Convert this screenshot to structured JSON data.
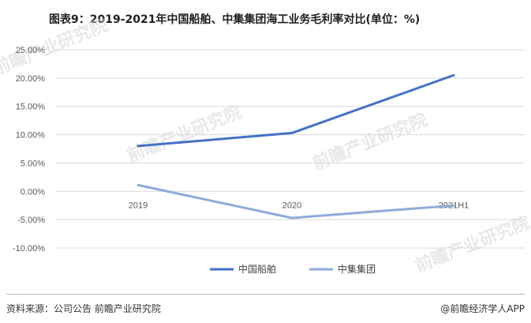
{
  "title": "图表9：2019-2021年中国船舶、中集集团海工业务毛利率对比(单位：%)",
  "watermark_text": "前瞻产业研究院",
  "footer": {
    "source": "资料来源：公司公告 前瞻产业研究院",
    "credit": "@前瞻经济学人APP"
  },
  "colors": {
    "series_1": "#4472c4",
    "series_2": "#8faadc",
    "grid": "#d9d9d9",
    "axis_text": "#595959"
  },
  "chart_data": {
    "type": "line",
    "title": "图表9：2019-2021年中国船舶、中集集团海工业务毛利率对比(单位：%)",
    "xlabel": "",
    "ylabel": "",
    "categories": [
      "2019",
      "2020",
      "2021H1"
    ],
    "series": [
      {
        "name": "中国船舶",
        "values": [
          8.0,
          10.3,
          20.5
        ]
      },
      {
        "name": "中集集团",
        "values": [
          1.1,
          -4.7,
          -2.5
        ]
      }
    ],
    "ylim": [
      -10,
      25
    ],
    "y_ticks": [
      "25.00%",
      "20.00%",
      "15.00%",
      "10.00%",
      "5.00%",
      "0.00%",
      "-5.00%",
      "-10.00%"
    ],
    "y_tick_values": [
      25,
      20,
      15,
      10,
      5,
      0,
      -5,
      -10
    ],
    "grid": true,
    "legend_position": "bottom"
  }
}
